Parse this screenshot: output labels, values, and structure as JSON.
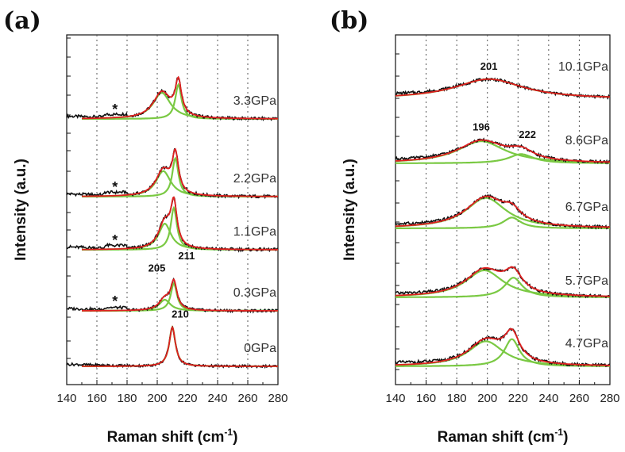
{
  "chart_data": [
    {
      "type": "line",
      "panel": "(a)",
      "xlabel": "Raman shift (cm",
      "xlabel_sup": "-1",
      "xlabel_end": ")",
      "ylabel": "Intensity (a.u.)",
      "xlim": [
        140,
        280
      ],
      "x_ticks": [
        "140",
        "160",
        "180",
        "200",
        "220",
        "240",
        "260",
        "280"
      ],
      "grid": "vertical dotted",
      "line_colors": {
        "measured": "#111111",
        "fit_total": "#e02020",
        "components": "#7ac943"
      },
      "spectra": [
        {
          "label": "3.3GPa",
          "star": true,
          "peaks": [
            {
              "center": 203,
              "height": 0.55,
              "width": 14
            },
            {
              "center": 214,
              "height": 0.72,
              "width": 5
            }
          ]
        },
        {
          "label": "2.2GPa",
          "star": true,
          "peaks": [
            {
              "center": 204,
              "height": 0.52,
              "width": 12
            },
            {
              "center": 212,
              "height": 0.78,
              "width": 5
            }
          ]
        },
        {
          "label": "1.1GPa",
          "star": true,
          "peaks": [
            {
              "center": 205,
              "height": 0.5,
              "width": 10
            },
            {
              "center": 211,
              "height": 0.8,
              "width": 5
            }
          ]
        },
        {
          "label": "0.3GPa",
          "star": true,
          "peaks": [
            {
              "center": 205,
              "height": 0.25,
              "width": 9
            },
            {
              "center": 211,
              "height": 0.62,
              "width": 5
            }
          ]
        },
        {
          "label": "0GPa",
          "star": false,
          "peaks": [
            {
              "center": 210,
              "height": 0.95,
              "width": 5
            }
          ]
        }
      ],
      "annotations": [
        {
          "text": "205",
          "x": 205,
          "spectrum": "0.3GPa"
        },
        {
          "text": "211",
          "x": 211,
          "spectrum": "0.3GPa"
        },
        {
          "text": "210",
          "x": 210,
          "spectrum": "0GPa"
        }
      ]
    },
    {
      "type": "line",
      "panel": "(b)",
      "xlabel": "Raman shift (cm",
      "xlabel_sup": "-1",
      "xlabel_end": ")",
      "ylabel": "Intensity (a.u.)",
      "xlim": [
        140,
        280
      ],
      "x_ticks": [
        "140",
        "160",
        "180",
        "200",
        "220",
        "240",
        "260",
        "280"
      ],
      "grid": "vertical dotted",
      "spectra": [
        {
          "label": "10.1GPa",
          "peaks": [
            {
              "center": 201,
              "height": 0.42,
              "width": 55
            }
          ]
        },
        {
          "label": "8.6GPa",
          "peaks": [
            {
              "center": 196,
              "height": 0.48,
              "width": 38
            },
            {
              "center": 222,
              "height": 0.2,
              "width": 20
            }
          ]
        },
        {
          "label": "6.7GPa",
          "peaks": [
            {
              "center": 199,
              "height": 0.62,
              "width": 32
            },
            {
              "center": 216,
              "height": 0.22,
              "width": 14
            }
          ]
        },
        {
          "label": "5.7GPa",
          "peaks": [
            {
              "center": 198,
              "height": 0.55,
              "width": 30
            },
            {
              "center": 217,
              "height": 0.4,
              "width": 14
            }
          ]
        },
        {
          "label": "4.7GPa",
          "peaks": [
            {
              "center": 199,
              "height": 0.48,
              "width": 28
            },
            {
              "center": 216,
              "height": 0.52,
              "width": 12
            }
          ]
        }
      ],
      "annotations": [
        {
          "text": "201",
          "x": 201,
          "spectrum": "10.1GPa"
        },
        {
          "text": "196",
          "x": 196,
          "spectrum": "8.6GPa"
        },
        {
          "text": "222",
          "x": 222,
          "spectrum": "8.6GPa"
        }
      ]
    }
  ]
}
